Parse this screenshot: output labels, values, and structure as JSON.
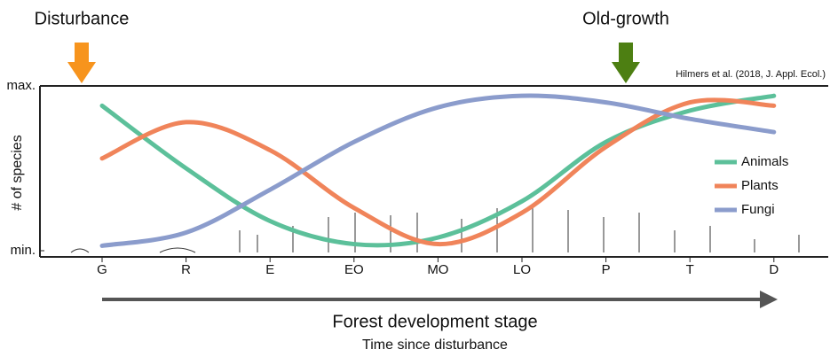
{
  "chart_data": {
    "type": "line",
    "y_label": "# of species",
    "x_label": "Forest development stage",
    "x_sublabel": "Time since disturbance",
    "source": "Hilmers et al. (2018, J. Appl. Ecol.)",
    "annotations": [
      "Disturbance",
      "Old-growth"
    ],
    "categories": [
      "G",
      "R",
      "E",
      "EO",
      "MO",
      "LO",
      "P",
      "T",
      "D"
    ],
    "ylim": [
      0,
      1
    ],
    "yticks": [
      {
        "value": 0,
        "label": "min."
      },
      {
        "value": 1,
        "label": "max."
      }
    ],
    "legend": "right",
    "series": [
      {
        "name": "Animals",
        "color": "#5cc09a",
        "values": [
          0.88,
          0.5,
          0.18,
          0.04,
          0.08,
          0.3,
          0.66,
          0.85,
          0.94
        ]
      },
      {
        "name": "Plants",
        "color": "#f0845a",
        "values": [
          0.56,
          0.78,
          0.61,
          0.26,
          0.04,
          0.23,
          0.63,
          0.9,
          0.88
        ]
      },
      {
        "name": "Fungi",
        "color": "#8b9ccc",
        "values": [
          0.03,
          0.11,
          0.37,
          0.66,
          0.87,
          0.94,
          0.9,
          0.8,
          0.72
        ]
      }
    ]
  }
}
